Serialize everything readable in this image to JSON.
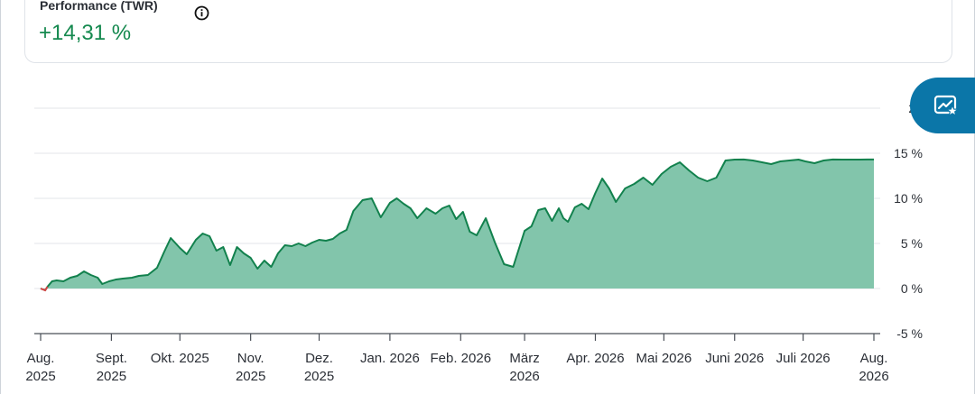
{
  "metric": {
    "label": "Performance (TWR)",
    "value": "+14,31 %"
  },
  "icons": {
    "info": "info-icon",
    "fab": "chart-star-icon"
  },
  "colors": {
    "line": "#12814d",
    "area": "#82c5ab",
    "negative": "#d64545",
    "positive_text": "#15894f",
    "fab": "#0b76a8"
  },
  "chart_data": {
    "type": "area",
    "y_ticks": [
      {
        "value": 20,
        "label": "20"
      },
      {
        "value": 15,
        "label": "15 %"
      },
      {
        "value": 10,
        "label": "10 %"
      },
      {
        "value": 5,
        "label": "5 %"
      },
      {
        "value": 0,
        "label": "0 %"
      },
      {
        "value": -5,
        "label": "-5 %"
      }
    ],
    "ylim": [
      -5,
      20
    ],
    "xlim": [
      "2025-08-01",
      "2026-08-01"
    ],
    "x_ticks": [
      {
        "date": "2025-08-01",
        "lines": [
          "Aug.",
          "2025"
        ]
      },
      {
        "date": "2025-09-01",
        "lines": [
          "Sept.",
          "2025"
        ]
      },
      {
        "date": "2025-10-01",
        "lines": [
          "Okt. 2025"
        ]
      },
      {
        "date": "2025-11-01",
        "lines": [
          "Nov.",
          "2025"
        ]
      },
      {
        "date": "2025-12-01",
        "lines": [
          "Dez.",
          "2025"
        ]
      },
      {
        "date": "2026-01-01",
        "lines": [
          "Jan. 2026"
        ]
      },
      {
        "date": "2026-02-01",
        "lines": [
          "Feb. 2026"
        ]
      },
      {
        "date": "2026-03-01",
        "lines": [
          "März",
          "2026"
        ]
      },
      {
        "date": "2026-04-01",
        "lines": [
          "Apr. 2026"
        ]
      },
      {
        "date": "2026-05-01",
        "lines": [
          "Mai 2026"
        ]
      },
      {
        "date": "2026-06-01",
        "lines": [
          "Juni 2026"
        ]
      },
      {
        "date": "2026-07-01",
        "lines": [
          "Juli 2026"
        ]
      },
      {
        "date": "2026-08-01",
        "lines": [
          "Aug.",
          "2026"
        ]
      }
    ],
    "grid": true,
    "series": [
      {
        "x": [
          "2025-08-01",
          "2025-08-03",
          "2025-08-04",
          "2025-08-06",
          "2025-08-08",
          "2025-08-11",
          "2025-08-14",
          "2025-08-17",
          "2025-08-20",
          "2025-08-23",
          "2025-08-26",
          "2025-08-28",
          "2025-08-31",
          "2025-09-03",
          "2025-09-06",
          "2025-09-10",
          "2025-09-13",
          "2025-09-17",
          "2025-09-21",
          "2025-09-24",
          "2025-09-27",
          "2025-10-01",
          "2025-10-04",
          "2025-10-08",
          "2025-10-11",
          "2025-10-14",
          "2025-10-17",
          "2025-10-20",
          "2025-10-23",
          "2025-10-26",
          "2025-10-29",
          "2025-11-01",
          "2025-11-04",
          "2025-11-07",
          "2025-11-10",
          "2025-11-13",
          "2025-11-16",
          "2025-11-19",
          "2025-11-22",
          "2025-11-25",
          "2025-11-28",
          "2025-12-01",
          "2025-12-04",
          "2025-12-07",
          "2025-12-10",
          "2025-12-13",
          "2025-12-16",
          "2025-12-20",
          "2025-12-24",
          "2025-12-28",
          "2026-01-01",
          "2026-01-04",
          "2026-01-07",
          "2026-01-10",
          "2026-01-13",
          "2026-01-17",
          "2026-01-21",
          "2026-01-24",
          "2026-01-27",
          "2026-01-30",
          "2026-02-02",
          "2026-02-05",
          "2026-02-08",
          "2026-02-12",
          "2026-02-16",
          "2026-02-20",
          "2026-02-24",
          "2026-03-01",
          "2026-03-04",
          "2026-03-07",
          "2026-03-10",
          "2026-03-13",
          "2026-03-16",
          "2026-03-18",
          "2026-03-20",
          "2026-03-23",
          "2026-03-26",
          "2026-03-29",
          "2026-04-01",
          "2026-04-04",
          "2026-04-07",
          "2026-04-10",
          "2026-04-14",
          "2026-04-18",
          "2026-04-22",
          "2026-04-26",
          "2026-04-30",
          "2026-05-04",
          "2026-05-08",
          "2026-05-12",
          "2026-05-16",
          "2026-05-20",
          "2026-05-24",
          "2026-05-28",
          "2026-06-01",
          "2026-06-05",
          "2026-06-09",
          "2026-06-13",
          "2026-06-17",
          "2026-06-21",
          "2026-06-25",
          "2026-06-29",
          "2026-07-02",
          "2026-07-06",
          "2026-07-10",
          "2026-07-14",
          "2026-07-18",
          "2026-07-22",
          "2026-07-26",
          "2026-07-29",
          "2026-08-01"
        ],
        "y": [
          0,
          -0.2,
          0.2,
          0.8,
          0.9,
          0.8,
          1.2,
          1.4,
          1.9,
          1.5,
          1.2,
          0.5,
          0.8,
          1.0,
          1.1,
          1.2,
          1.4,
          1.5,
          2.3,
          4.0,
          5.6,
          4.5,
          3.8,
          5.4,
          6.1,
          5.8,
          4.2,
          4.6,
          2.6,
          4.6,
          3.9,
          3.4,
          2.2,
          3.1,
          2.4,
          3.9,
          4.8,
          4.7,
          5.0,
          4.7,
          5.1,
          5.4,
          5.3,
          5.5,
          6.1,
          6.5,
          8.6,
          9.8,
          10.0,
          7.9,
          9.5,
          10.0,
          9.4,
          8.9,
          7.8,
          8.9,
          8.3,
          8.9,
          9.2,
          7.7,
          8.5,
          6.3,
          5.9,
          7.8,
          5.1,
          2.7,
          2.4,
          6.4,
          6.9,
          8.7,
          8.9,
          7.5,
          8.9,
          7.8,
          7.4,
          9.0,
          9.4,
          8.8,
          10.6,
          12.2,
          11.1,
          9.6,
          11.1,
          11.6,
          12.3,
          11.5,
          12.7,
          13.5,
          14.0,
          13.1,
          12.3,
          11.9,
          12.3,
          14.2,
          14.3,
          14.31,
          14.2,
          14.0,
          13.8,
          14.1,
          14.2,
          14.3,
          14.1,
          13.9,
          14.2,
          14.31,
          14.3,
          14.3,
          14.3,
          14.31,
          14.31
        ]
      }
    ]
  }
}
